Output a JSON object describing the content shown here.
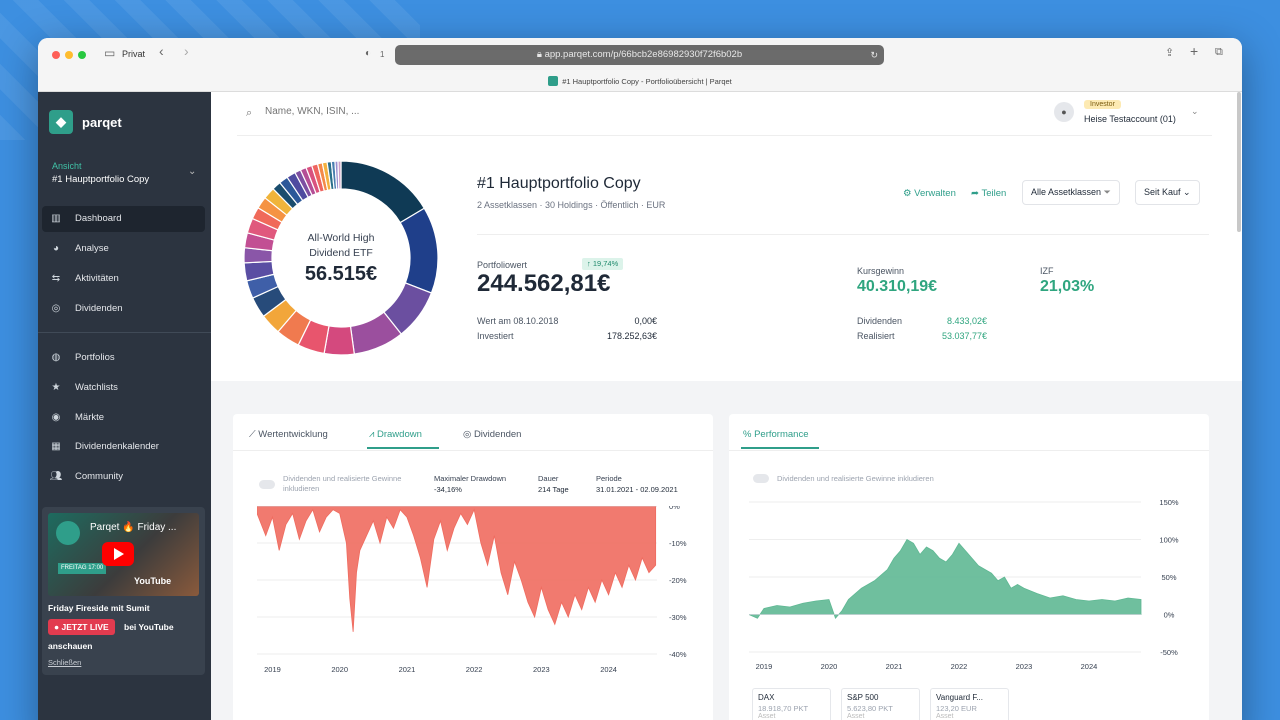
{
  "browser": {
    "private_label": "Privat",
    "url": "app.parqet.com/p/66bcb2e86982930f72f6b02b",
    "tab_title": "#1 Hauptportfolio Copy - Portfolioübersicht | Parqet",
    "tab_count": "1"
  },
  "sidebar": {
    "brand": "parqet",
    "view_label": "Ansicht",
    "view_value": "#1 Hauptportfolio Copy",
    "items": [
      {
        "label": "Dashboard",
        "icon": "dashboard-icon"
      },
      {
        "label": "Analyse",
        "icon": "pie-chart-icon"
      },
      {
        "label": "Aktivitäten",
        "icon": "swap-arrows-icon"
      },
      {
        "label": "Dividenden",
        "icon": "coins-icon"
      },
      {
        "label": "Portfolios",
        "icon": "portfolio-icon"
      },
      {
        "label": "Watchlists",
        "icon": "star-icon"
      },
      {
        "label": "Märkte",
        "icon": "globe-icon"
      },
      {
        "label": "Dividendenkalender",
        "icon": "calendar-icon"
      },
      {
        "label": "Community",
        "icon": "users-icon"
      }
    ],
    "promo": {
      "video_title": "Parqet 🔥 Friday ...",
      "thumb_badge": "FREITAG 17:00",
      "yt_logo": "YouTube",
      "title": "Friday Fireside mit Sumit",
      "live_label": "● JETZT LIVE",
      "live_after": "bei YouTube",
      "live_after2": "anschauen",
      "close": "Schließen"
    }
  },
  "header": {
    "search_placeholder": "Name, WKN, ISIN, ...",
    "role_badge": "Investor",
    "account": "Heise Testaccount (01)"
  },
  "portfolio": {
    "donut_center_line1": "All-World High",
    "donut_center_line2": "Dividend ETF",
    "donut_center_value": "56.515€",
    "title": "#1 Hauptportfolio Copy",
    "subtitle": "2 Assetklassen · 30 Holdings · Öffentlich · EUR",
    "manage": "Verwalten",
    "share": "Teilen",
    "asset_filter": "Alle Assetklassen",
    "period_select": "Seit Kauf",
    "value_label": "Portfoliowert",
    "value_change": "↑ 19,74%",
    "value": "244.562,81€",
    "value_date_label": "Wert am 08.10.2018",
    "value_date_val": "0,00€",
    "invested_label": "Investiert",
    "invested_val": "178.252,63€",
    "gain_label": "Kursgewinn",
    "gain_value": "40.310,19€",
    "irr_label": "IZF",
    "irr_value": "21,03%",
    "dividends_label": "Dividenden",
    "dividends_val": "8.433,02€",
    "realized_label": "Realisiert",
    "realized_val": "53.037,77€",
    "colors": {
      "accent": "#2f9e8a",
      "positive": "#2fa57f"
    }
  },
  "drawdown_card": {
    "tabs": [
      "Wertentwicklung",
      "Drawdown",
      "Dividenden"
    ],
    "active_tab": 1,
    "toggle_label_1": "Dividenden und realisierte Gewinne",
    "toggle_label_2": "inkludieren",
    "max_dd_label": "Maximaler Drawdown",
    "max_dd_val": "-34,16%",
    "duration_label": "Dauer",
    "duration_val": "214 Tage",
    "period_label": "Periode",
    "period_val": "31.01.2021 - 02.09.2021"
  },
  "performance_card": {
    "tab": "Performance",
    "toggle_label": "Dividenden und realisierte Gewinne inkludieren",
    "benchmarks": [
      {
        "name": "DAX",
        "value": "18.918,70 PKT",
        "type": "Asset"
      },
      {
        "name": "S&P 500",
        "value": "5.623,80 PKT",
        "type": "Asset"
      },
      {
        "name": "Vanguard F...",
        "value": "123,20 EUR",
        "type": "Asset"
      }
    ]
  },
  "chart_data": [
    {
      "type": "donut",
      "values": [
        16.5,
        14.5,
        8.5,
        8.5,
        5.0,
        4.5,
        4.0,
        3.5,
        3.5,
        3.0,
        3.0,
        2.5,
        2.5,
        2.5,
        2.0,
        2.0,
        2.0,
        1.5,
        1.5,
        1.5,
        1.0,
        1.0,
        1.0,
        1.0,
        0.8,
        0.8,
        0.7,
        0.6,
        0.5,
        0.5
      ],
      "colors": [
        "#0f3a55",
        "#1f3f8a",
        "#6b4fa0",
        "#9b4f9e",
        "#d4497e",
        "#e8556d",
        "#f07a4f",
        "#f2a63a",
        "#274b7a",
        "#3f5fa8",
        "#5a4ea3",
        "#8a56a8",
        "#c24f93",
        "#e0587d",
        "#f06a5a",
        "#f59343",
        "#f0b43a",
        "#1a4d6e",
        "#2c5899",
        "#4f4ba0",
        "#7d4fa2",
        "#b44e96",
        "#d9527f",
        "#ee6560",
        "#f48a48",
        "#f3b13f",
        "#2a6f8a",
        "#4a7fb0",
        "#9a8fd0",
        "#d0a0c8"
      ]
    },
    {
      "type": "area",
      "title": "Drawdown",
      "x_ticks": [
        "2019",
        "2020",
        "2021",
        "2022",
        "2023",
        "2024"
      ],
      "y_ticks": [
        "0%",
        "-10%",
        "-20%",
        "-30%",
        "-40%"
      ],
      "ylim": [
        -40,
        0
      ],
      "x": [
        2018.77,
        2018.9,
        2019.0,
        2019.1,
        2019.2,
        2019.3,
        2019.4,
        2019.5,
        2019.6,
        2019.7,
        2019.8,
        2019.9,
        2020.0,
        2020.1,
        2020.15,
        2020.2,
        2020.25,
        2020.3,
        2020.4,
        2020.5,
        2020.6,
        2020.7,
        2020.8,
        2020.9,
        2021.0,
        2021.1,
        2021.2,
        2021.3,
        2021.4,
        2021.5,
        2021.6,
        2021.7,
        2021.8,
        2021.9,
        2022.0,
        2022.1,
        2022.2,
        2022.3,
        2022.4,
        2022.5,
        2022.6,
        2022.7,
        2022.8,
        2022.9,
        2023.0,
        2023.1,
        2023.2,
        2023.3,
        2023.4,
        2023.5,
        2023.6,
        2023.7,
        2023.8,
        2023.9,
        2024.0,
        2024.1,
        2024.2,
        2024.3,
        2024.4,
        2024.5,
        2024.6,
        2024.7
      ],
      "values": [
        -2,
        -8,
        -3,
        -12,
        -5,
        -2,
        -9,
        -4,
        -1,
        -7,
        -3,
        -1,
        -2,
        -10,
        -25,
        -34,
        -18,
        -12,
        -8,
        -4,
        -10,
        -3,
        -6,
        -1,
        -3,
        -8,
        -14,
        -22,
        -9,
        -4,
        -12,
        -6,
        -2,
        -5,
        -1,
        -10,
        -16,
        -8,
        -18,
        -24,
        -15,
        -20,
        -26,
        -30,
        -22,
        -28,
        -32,
        -26,
        -30,
        -24,
        -28,
        -22,
        -26,
        -20,
        -24,
        -18,
        -22,
        -16,
        -20,
        -14,
        -18,
        -16
      ]
    },
    {
      "type": "area",
      "title": "Performance",
      "x_ticks": [
        "2019",
        "2020",
        "2021",
        "2022",
        "2023",
        "2024"
      ],
      "y_ticks": [
        "150%",
        "100%",
        "50%",
        "0%",
        "-50%"
      ],
      "ylim": [
        -50,
        150
      ],
      "x": [
        2018.77,
        2018.9,
        2019.0,
        2019.2,
        2019.4,
        2019.6,
        2019.8,
        2020.0,
        2020.1,
        2020.2,
        2020.3,
        2020.5,
        2020.7,
        2020.9,
        2021.0,
        2021.1,
        2021.2,
        2021.3,
        2021.4,
        2021.5,
        2021.6,
        2021.7,
        2021.8,
        2021.9,
        2022.0,
        2022.1,
        2022.2,
        2022.3,
        2022.4,
        2022.5,
        2022.6,
        2022.7,
        2022.8,
        2022.9,
        2023.0,
        2023.2,
        2023.4,
        2023.6,
        2023.8,
        2024.0,
        2024.2,
        2024.4,
        2024.6,
        2024.8
      ],
      "values": [
        0,
        -5,
        8,
        12,
        10,
        15,
        18,
        20,
        -5,
        5,
        20,
        35,
        45,
        60,
        75,
        85,
        100,
        95,
        80,
        90,
        85,
        75,
        70,
        80,
        95,
        85,
        75,
        65,
        60,
        55,
        45,
        50,
        35,
        40,
        35,
        28,
        22,
        25,
        20,
        18,
        20,
        18,
        22,
        20
      ]
    }
  ]
}
